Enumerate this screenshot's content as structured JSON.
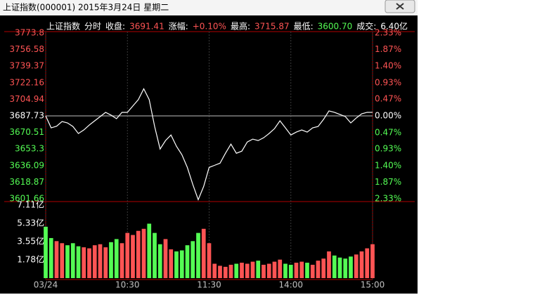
{
  "chart_data": {
    "type": "line",
    "title": "上证指数(000001) 2015年3月24日 星期二",
    "info": {
      "name": "上证指数",
      "mode": "分时",
      "items": [
        {
          "label": "收盘:",
          "value": "3691.41"
        },
        {
          "label": "涨幅:",
          "value": "+0.10%"
        },
        {
          "label": "最高:",
          "value": "3715.87"
        },
        {
          "label": "最低:",
          "value": "3600.70"
        },
        {
          "label": "成交:",
          "value": "6.40亿"
        }
      ]
    },
    "x": [
      0,
      4,
      8,
      12,
      16,
      20,
      24,
      28,
      32,
      36,
      40,
      44,
      48,
      52,
      56,
      60,
      64,
      68,
      72,
      76,
      80,
      84,
      88,
      92,
      96,
      100,
      104,
      108,
      112,
      116,
      120,
      124,
      128,
      132,
      136,
      140,
      144,
      148,
      152,
      156,
      160,
      164,
      168,
      172,
      176,
      180,
      184,
      188,
      192,
      196,
      200,
      204,
      208,
      212,
      216,
      220,
      224,
      228,
      232,
      236,
      240
    ],
    "xlim": [
      0,
      240
    ],
    "xticks": [
      {
        "value": 0,
        "label": "03/24"
      },
      {
        "value": 60,
        "label": "10:30"
      },
      {
        "value": 120,
        "label": "11:30"
      },
      {
        "value": 180,
        "label": "14:00"
      },
      {
        "value": 240,
        "label": "15:00"
      }
    ],
    "ylim": [
      3601.66,
      3773.8
    ],
    "yticks": [
      3773.8,
      3756.58,
      3739.37,
      3722.16,
      3704.94,
      3687.73,
      3670.51,
      3653.3,
      3636.09,
      3618.87,
      3601.66
    ],
    "y2lim": [
      -2.33,
      2.33
    ],
    "y2ticks": [
      {
        "value": 2.33,
        "label": "2.33%"
      },
      {
        "value": 1.87,
        "label": "1.87%"
      },
      {
        "value": 1.4,
        "label": "1.40%"
      },
      {
        "value": 0.93,
        "label": "0.93%"
      },
      {
        "value": 0.47,
        "label": "0.47%"
      },
      {
        "value": 0,
        "label": "0.00%"
      },
      {
        "value": -0.47,
        "label": "0.47%"
      },
      {
        "value": -0.93,
        "label": "0.93%"
      },
      {
        "value": -1.4,
        "label": "1.40%"
      },
      {
        "value": -1.87,
        "label": "1.87%"
      },
      {
        "value": -2.33,
        "label": "2.33%"
      }
    ],
    "up_color": "#ff5454",
    "down_color": "#54fc54",
    "price": {
      "color": "#ffffff",
      "values": [
        3687.7,
        3675.3,
        3677.0,
        3681.9,
        3680.4,
        3676.7,
        3669.4,
        3673.1,
        3678.2,
        3682.6,
        3687.0,
        3691.4,
        3688.5,
        3684.8,
        3691.4,
        3691.4,
        3698.0,
        3704.6,
        3715.87,
        3704.6,
        3676.7,
        3653.3,
        3662.1,
        3667.9,
        3656.2,
        3647.4,
        3634.2,
        3616.6,
        3600.7,
        3614.5,
        3634.2,
        3636.4,
        3638.6,
        3648.9,
        3658.4,
        3648.9,
        3651.1,
        3660.6,
        3663.6,
        3662.1,
        3665.0,
        3669.4,
        3674.5,
        3682.6,
        3675.3,
        3667.9,
        3670.9,
        3673.1,
        3670.9,
        3675.3,
        3676.7,
        3684.1,
        3692.9,
        3691.4,
        3689.2,
        3687.0,
        3680.4,
        3685.5,
        3689.9,
        3691.4,
        3691.41
      ]
    },
    "volume": {
      "type": "bar",
      "ylim": [
        0,
        7.11
      ],
      "yticks": [
        {
          "value": 7.11,
          "label": "7.11亿"
        },
        {
          "value": 5.33,
          "label": "5.33亿"
        },
        {
          "value": 3.55,
          "label": "3.55亿"
        },
        {
          "value": 1.78,
          "label": "1.78亿"
        }
      ],
      "values": [
        5.0,
        3.9,
        3.6,
        3.4,
        3.2,
        3.4,
        3.1,
        3.0,
        2.9,
        3.2,
        3.3,
        3.0,
        3.5,
        3.8,
        3.4,
        4.4,
        4.2,
        4.6,
        4.8,
        5.3,
        4.4,
        3.3,
        3.8,
        2.8,
        2.6,
        2.7,
        3.2,
        3.6,
        4.4,
        4.8,
        3.4,
        1.4,
        1.2,
        1.1,
        1.3,
        1.4,
        1.5,
        1.4,
        1.6,
        1.7,
        1.3,
        1.4,
        1.6,
        1.8,
        1.4,
        1.3,
        1.5,
        1.6,
        1.5,
        1.3,
        1.7,
        1.9,
        2.6,
        2.2,
        2.0,
        1.9,
        2.1,
        2.3,
        2.6,
        2.9,
        3.3
      ]
    }
  }
}
